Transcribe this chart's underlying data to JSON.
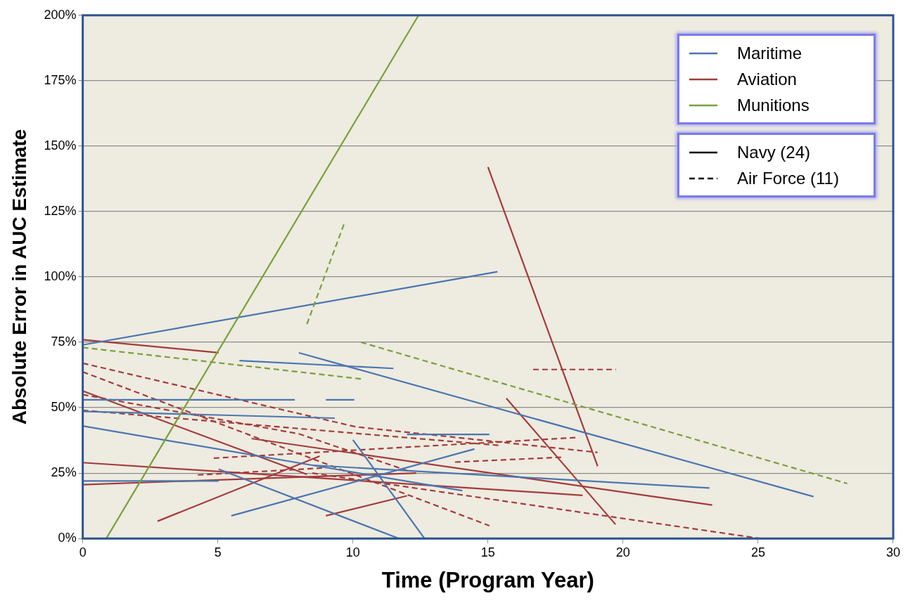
{
  "chart_data": {
    "type": "line",
    "xlabel": "Time (Program Year)",
    "ylabel": "Absolute Error in AUC Estimate",
    "xlim": [
      0,
      30
    ],
    "xticks": [
      0,
      5,
      10,
      15,
      20,
      25,
      30
    ],
    "ylim": [
      0,
      200
    ],
    "yticks": [
      {
        "value": 0,
        "label": "0%"
      },
      {
        "value": 25,
        "label": "25%"
      },
      {
        "value": 50,
        "label": "50%"
      },
      {
        "value": 75,
        "label": "75%"
      },
      {
        "value": 100,
        "label": "100%"
      },
      {
        "value": 125,
        "label": "125%"
      },
      {
        "value": 150,
        "label": "150%"
      },
      {
        "value": 175,
        "label": "175%"
      },
      {
        "value": 200,
        "label": "200%"
      }
    ],
    "grid": "y",
    "legend": "top right",
    "marker": "none",
    "series": [
      {
        "name": "Maritime",
        "color": "#4a76b0",
        "line_style": "solid"
      },
      {
        "name": "Aviation",
        "color": "#a33b3b",
        "line_style": "solid"
      },
      {
        "name": "Munitions",
        "color": "#78a03c",
        "line_style": "solid"
      },
      {
        "name": "Navy (24)",
        "color": "#000000",
        "line_style": "solid"
      },
      {
        "name": "Air Force (11)",
        "color": "#000000",
        "line_style": "dashed"
      },
      {
        "color": "#78a03c",
        "line_style": "solid",
        "x": [
          0.87,
          12.43
        ],
        "values": [
          0,
          200
        ]
      },
      {
        "color": "#78a03c",
        "line_style": "dashed",
        "x": [
          8.3,
          9.7
        ],
        "values": [
          82,
          121
        ]
      },
      {
        "color": "#78a03c",
        "line_style": "dashed",
        "x": [
          0,
          10.3
        ],
        "values": [
          73,
          61
        ]
      },
      {
        "color": "#78a03c",
        "line_style": "dashed",
        "x": [
          10.3,
          28.3
        ],
        "values": [
          75,
          21
        ]
      },
      {
        "color": "#4a76b0",
        "line_style": "solid",
        "x": [
          0,
          15.35
        ],
        "values": [
          74,
          102
        ]
      },
      {
        "color": "#4a76b0",
        "line_style": "solid",
        "x": [
          5.8,
          11.5
        ],
        "values": [
          68,
          65
        ]
      },
      {
        "color": "#4a76b0",
        "line_style": "solid",
        "x": [
          8,
          27.05
        ],
        "values": [
          71,
          16
        ]
      },
      {
        "color": "#4a76b0",
        "line_style": "solid",
        "x": [
          0,
          7.85
        ],
        "values": [
          53,
          53
        ]
      },
      {
        "color": "#4a76b0",
        "line_style": "solid",
        "x": [
          9,
          10.05
        ],
        "values": [
          53,
          53
        ]
      },
      {
        "color": "#4a76b0",
        "line_style": "solid",
        "x": [
          0,
          9.33
        ],
        "values": [
          48.6,
          46
        ]
      },
      {
        "color": "#4a76b0",
        "line_style": "solid",
        "x": [
          0,
          8.5,
          23.2
        ],
        "values": [
          43,
          28,
          19.3
        ]
      },
      {
        "color": "#4a76b0",
        "line_style": "solid",
        "x": [
          8.5,
          14.05
        ],
        "values": [
          28,
          18.3
        ]
      },
      {
        "color": "#4a76b0",
        "line_style": "solid",
        "x": [
          5.03,
          11.7
        ],
        "values": [
          26.5,
          0
        ]
      },
      {
        "color": "#4a76b0",
        "line_style": "solid",
        "x": [
          5.5,
          14.5
        ],
        "values": [
          8.7,
          34.2
        ]
      },
      {
        "color": "#4a76b0",
        "line_style": "solid",
        "x": [
          10,
          12.65
        ],
        "values": [
          37.7,
          0
        ]
      },
      {
        "color": "#4a76b0",
        "line_style": "solid",
        "x": [
          0,
          5.03
        ],
        "values": [
          22,
          22
        ]
      },
      {
        "color": "#4a76b0",
        "line_style": "solid",
        "x": [
          12,
          15.05
        ],
        "values": [
          39.8,
          39.8
        ]
      },
      {
        "color": "#a33b3b",
        "line_style": "solid",
        "x": [
          0,
          5.03
        ],
        "values": [
          76,
          71
        ]
      },
      {
        "color": "#a33b3b",
        "line_style": "solid",
        "x": [
          0,
          8.3
        ],
        "values": [
          56.4,
          24.5
        ]
      },
      {
        "color": "#a33b3b",
        "line_style": "solid",
        "x": [
          6.25,
          23.3
        ],
        "values": [
          38.2,
          12.8
        ]
      },
      {
        "color": "#a33b3b",
        "line_style": "solid",
        "x": [
          0,
          18.5
        ],
        "values": [
          29,
          16.5
        ]
      },
      {
        "color": "#a33b3b",
        "line_style": "solid",
        "x": [
          0,
          12.34
        ],
        "values": [
          20.6,
          25
        ]
      },
      {
        "color": "#a33b3b",
        "line_style": "solid",
        "x": [
          2.77,
          8.77
        ],
        "values": [
          6.6,
          31.5
        ]
      },
      {
        "color": "#a33b3b",
        "line_style": "solid",
        "x": [
          9,
          12
        ],
        "values": [
          8.7,
          16.3
        ]
      },
      {
        "color": "#a33b3b",
        "line_style": "solid",
        "x": [
          15,
          19.06
        ],
        "values": [
          142,
          27.6
        ]
      },
      {
        "color": "#a33b3b",
        "line_style": "solid",
        "x": [
          15.68,
          19.72
        ],
        "values": [
          53.6,
          5.4
        ]
      },
      {
        "color": "#a33b3b",
        "line_style": "dashed",
        "x": [
          0,
          10.1,
          19.06
        ],
        "values": [
          67,
          42.7,
          32.9
        ]
      },
      {
        "color": "#a33b3b",
        "line_style": "dashed",
        "x": [
          0,
          15.05
        ],
        "values": [
          63.7,
          4.9
        ]
      },
      {
        "color": "#a33b3b",
        "line_style": "dashed",
        "x": [
          0,
          8,
          12
        ],
        "values": [
          55,
          40,
          26
        ]
      },
      {
        "color": "#a33b3b",
        "line_style": "dashed",
        "x": [
          4.85,
          18.3
        ],
        "values": [
          30.7,
          38.6
        ]
      },
      {
        "color": "#a33b3b",
        "line_style": "dashed",
        "x": [
          13.78,
          17.8
        ],
        "values": [
          29.2,
          31.1
        ]
      },
      {
        "color": "#a33b3b",
        "line_style": "dashed",
        "x": [
          16.67,
          19.74
        ],
        "values": [
          64.6,
          64.6
        ]
      },
      {
        "color": "#a33b3b",
        "line_style": "dashed",
        "x": [
          4.26,
          9
        ],
        "values": [
          24.3,
          27
        ]
      },
      {
        "color": "#a33b3b",
        "line_style": "dashed",
        "x": [
          8.5,
          25.07
        ],
        "values": [
          25,
          0
        ]
      },
      {
        "color": "#a33b3b",
        "line_style": "dashed",
        "x": [
          0,
          10.1,
          15.5
        ],
        "values": [
          49,
          40.2,
          35.5
        ]
      }
    ]
  }
}
